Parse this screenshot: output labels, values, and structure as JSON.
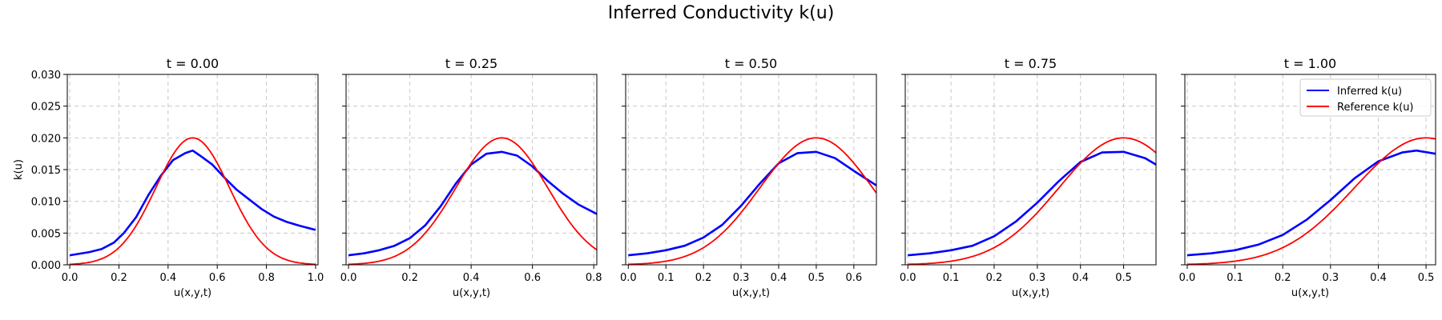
{
  "figure": {
    "title": "Inferred Conductivity k(u)"
  },
  "chart_data": [
    {
      "type": "line",
      "title": "t = 0.00",
      "xlabel": "u(x,y,t)",
      "ylabel": "k(u)",
      "xlim": [
        -0.01,
        1.01
      ],
      "ylim": [
        0,
        0.03
      ],
      "xticks": [
        0.0,
        0.2,
        0.4,
        0.6,
        0.8,
        1.0
      ],
      "xtick_labels": [
        "0.0",
        "0.2",
        "0.4",
        "0.6",
        "0.8",
        "1.0"
      ],
      "yticks": [
        0,
        0.005,
        0.01,
        0.015,
        0.02,
        0.025,
        0.03
      ],
      "ytick_labels": [
        "0.000",
        "0.005",
        "0.010",
        "0.015",
        "0.020",
        "0.025",
        "0.030"
      ],
      "grid": true,
      "series": [
        {
          "name": "Inferred k(u)",
          "color": "#0000ff",
          "x": [
            0.0,
            0.08,
            0.13,
            0.18,
            0.22,
            0.27,
            0.32,
            0.37,
            0.42,
            0.47,
            0.5,
            0.53,
            0.58,
            0.63,
            0.68,
            0.73,
            0.78,
            0.83,
            0.88,
            0.93,
            1.0
          ],
          "y": [
            0.0015,
            0.002,
            0.0025,
            0.0035,
            0.005,
            0.0075,
            0.011,
            0.014,
            0.0165,
            0.0176,
            0.018,
            0.0172,
            0.0158,
            0.0137,
            0.0118,
            0.0103,
            0.0088,
            0.0076,
            0.0068,
            0.0062,
            0.0055
          ]
        },
        {
          "name": "Reference k(u)",
          "color": "#ff0000",
          "curve": "gaussian",
          "amplitude": 0.02,
          "mu": 0.5,
          "sigma": 0.15,
          "x_range": [
            0.0,
            1.0
          ]
        }
      ]
    },
    {
      "type": "line",
      "title": "t = 0.25",
      "xlabel": "u(x,y,t)",
      "ylabel": "",
      "xlim": [
        -0.008,
        0.81
      ],
      "ylim": [
        0,
        0.03
      ],
      "xticks": [
        0.0,
        0.2,
        0.4,
        0.6,
        0.8
      ],
      "xtick_labels": [
        "0.0",
        "0.2",
        "0.4",
        "0.6",
        "0.8"
      ],
      "yticks": [
        0,
        0.005,
        0.01,
        0.015,
        0.02,
        0.025,
        0.03
      ],
      "ytick_labels": [],
      "grid": true,
      "series": [
        {
          "name": "Inferred k(u)",
          "color": "#0000ff",
          "x": [
            0.0,
            0.05,
            0.1,
            0.15,
            0.2,
            0.25,
            0.3,
            0.35,
            0.4,
            0.45,
            0.5,
            0.55,
            0.6,
            0.65,
            0.7,
            0.75,
            0.81
          ],
          "y": [
            0.0015,
            0.0018,
            0.0023,
            0.003,
            0.0042,
            0.0062,
            0.0092,
            0.0128,
            0.0158,
            0.0175,
            0.0178,
            0.0172,
            0.0155,
            0.0132,
            0.0112,
            0.0095,
            0.008
          ]
        },
        {
          "name": "Reference k(u)",
          "color": "#ff0000",
          "curve": "gaussian",
          "amplitude": 0.02,
          "mu": 0.5,
          "sigma": 0.15,
          "x_range": [
            0.0,
            0.81
          ]
        }
      ]
    },
    {
      "type": "line",
      "title": "t = 0.50",
      "xlabel": "u(x,y,t)",
      "ylabel": "",
      "xlim": [
        -0.007,
        0.66
      ],
      "ylim": [
        0,
        0.03
      ],
      "xticks": [
        0.0,
        0.1,
        0.2,
        0.3,
        0.4,
        0.5,
        0.6
      ],
      "xtick_labels": [
        "0.0",
        "0.1",
        "0.2",
        "0.3",
        "0.4",
        "0.5",
        "0.6"
      ],
      "yticks": [
        0,
        0.005,
        0.01,
        0.015,
        0.02,
        0.025,
        0.03
      ],
      "ytick_labels": [],
      "grid": true,
      "series": [
        {
          "name": "Inferred k(u)",
          "color": "#0000ff",
          "x": [
            0.0,
            0.05,
            0.1,
            0.15,
            0.2,
            0.25,
            0.3,
            0.35,
            0.4,
            0.45,
            0.5,
            0.55,
            0.6,
            0.66
          ],
          "y": [
            0.0015,
            0.0018,
            0.0023,
            0.003,
            0.0043,
            0.0063,
            0.0093,
            0.0128,
            0.016,
            0.0176,
            0.0178,
            0.0168,
            0.0148,
            0.0125
          ]
        },
        {
          "name": "Reference k(u)",
          "color": "#ff0000",
          "curve": "gaussian",
          "amplitude": 0.02,
          "mu": 0.5,
          "sigma": 0.15,
          "x_range": [
            0.0,
            0.66
          ]
        }
      ]
    },
    {
      "type": "line",
      "title": "t = 0.75",
      "xlabel": "u(x,y,t)",
      "ylabel": "",
      "xlim": [
        -0.006,
        0.575
      ],
      "ylim": [
        0,
        0.03
      ],
      "xticks": [
        0.0,
        0.1,
        0.2,
        0.3,
        0.4,
        0.5
      ],
      "xtick_labels": [
        "0.0",
        "0.1",
        "0.2",
        "0.3",
        "0.4",
        "0.5"
      ],
      "yticks": [
        0,
        0.005,
        0.01,
        0.015,
        0.02,
        0.025,
        0.03
      ],
      "ytick_labels": [],
      "grid": true,
      "series": [
        {
          "name": "Inferred k(u)",
          "color": "#0000ff",
          "x": [
            0.0,
            0.05,
            0.1,
            0.15,
            0.2,
            0.25,
            0.3,
            0.35,
            0.4,
            0.45,
            0.5,
            0.55,
            0.575
          ],
          "y": [
            0.0015,
            0.0018,
            0.0023,
            0.003,
            0.0045,
            0.0068,
            0.0098,
            0.0132,
            0.0162,
            0.0177,
            0.0178,
            0.0168,
            0.0158
          ]
        },
        {
          "name": "Reference k(u)",
          "color": "#ff0000",
          "curve": "gaussian",
          "amplitude": 0.02,
          "mu": 0.5,
          "sigma": 0.15,
          "x_range": [
            0.0,
            0.575
          ]
        }
      ]
    },
    {
      "type": "line",
      "title": "t = 1.00",
      "xlabel": "u(x,y,t)",
      "ylabel": "",
      "xlim": [
        -0.005,
        0.52
      ],
      "ylim": [
        0,
        0.03
      ],
      "xticks": [
        0.0,
        0.1,
        0.2,
        0.3,
        0.4,
        0.5
      ],
      "xtick_labels": [
        "0.0",
        "0.1",
        "0.2",
        "0.3",
        "0.4",
        "0.5"
      ],
      "yticks": [
        0,
        0.005,
        0.01,
        0.015,
        0.02,
        0.025,
        0.03
      ],
      "ytick_labels": [],
      "grid": true,
      "legend": {
        "position": "upper right",
        "entries": [
          "Inferred k(u)",
          "Reference k(u)"
        ]
      },
      "series": [
        {
          "name": "Inferred k(u)",
          "color": "#0000ff",
          "x": [
            0.0,
            0.05,
            0.1,
            0.15,
            0.2,
            0.25,
            0.3,
            0.35,
            0.4,
            0.45,
            0.48,
            0.52
          ],
          "y": [
            0.0015,
            0.0018,
            0.0023,
            0.0032,
            0.0047,
            0.0071,
            0.0102,
            0.0136,
            0.0163,
            0.0177,
            0.018,
            0.0175
          ]
        },
        {
          "name": "Reference k(u)",
          "color": "#ff0000",
          "curve": "gaussian",
          "amplitude": 0.02,
          "mu": 0.5,
          "sigma": 0.15,
          "x_range": [
            0.0,
            0.52
          ]
        }
      ]
    }
  ]
}
